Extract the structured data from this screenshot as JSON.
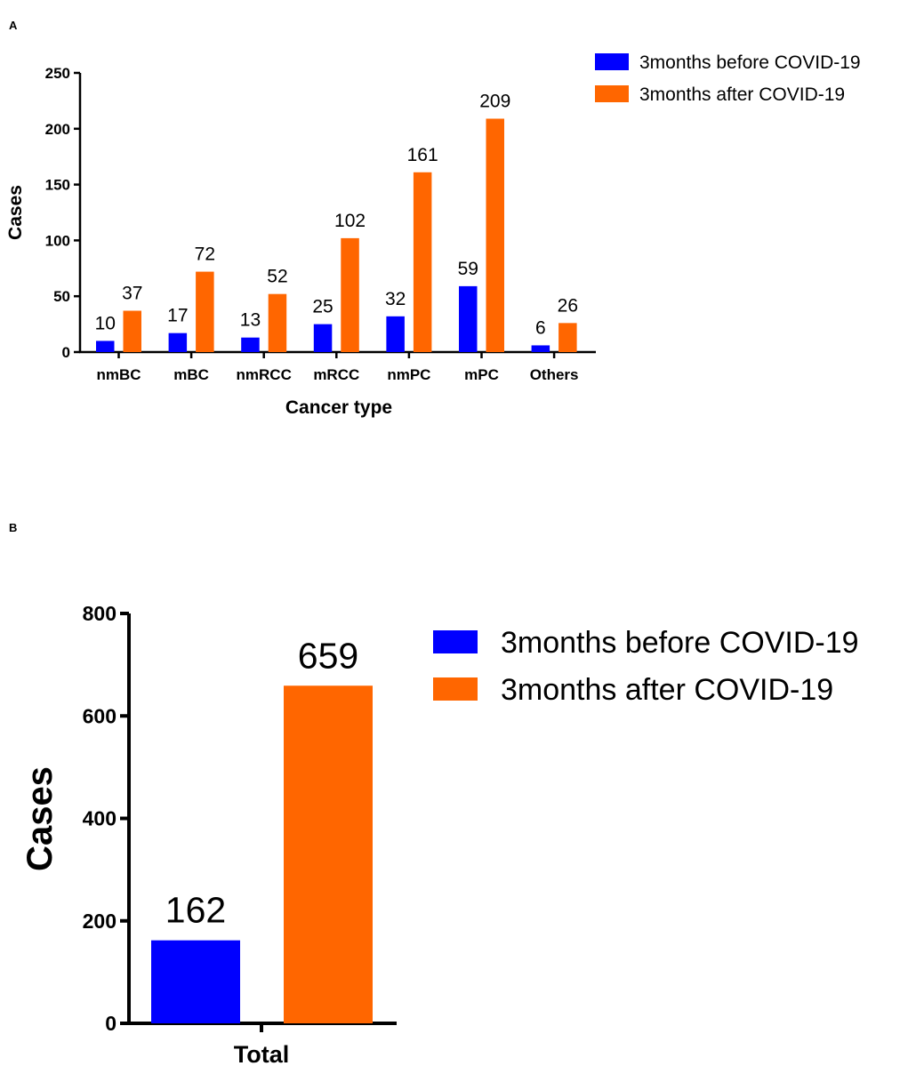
{
  "colors": {
    "before": "#0000ff",
    "after": "#ff6600",
    "axis": "#000000"
  },
  "chart_data": [
    {
      "panel": "A",
      "type": "bar",
      "xlabel": "Cancer type",
      "ylabel": "Cases",
      "ylim": [
        0,
        250
      ],
      "yticks": [
        0,
        50,
        100,
        150,
        200,
        250
      ],
      "categories": [
        "nmBC",
        "mBC",
        "nmRCC",
        "mRCC",
        "nmPC",
        "mPC",
        "Others"
      ],
      "series": [
        {
          "name": "3months before COVID-19",
          "color": "#0000ff",
          "values": [
            10,
            17,
            13,
            25,
            32,
            59,
            6
          ]
        },
        {
          "name": "3months after COVID-19",
          "color": "#ff6600",
          "values": [
            37,
            72,
            52,
            102,
            161,
            209,
            26
          ]
        }
      ],
      "legend_position": "top-right"
    },
    {
      "panel": "B",
      "type": "bar",
      "xlabel": "",
      "ylabel": "Cases",
      "ylim": [
        0,
        800
      ],
      "yticks": [
        0,
        200,
        400,
        600,
        800
      ],
      "categories": [
        "Total"
      ],
      "series": [
        {
          "name": "3months before COVID-19",
          "color": "#0000ff",
          "values": [
            162
          ]
        },
        {
          "name": "3months after COVID-19",
          "color": "#ff6600",
          "values": [
            659
          ]
        }
      ],
      "legend_position": "top-right"
    }
  ]
}
